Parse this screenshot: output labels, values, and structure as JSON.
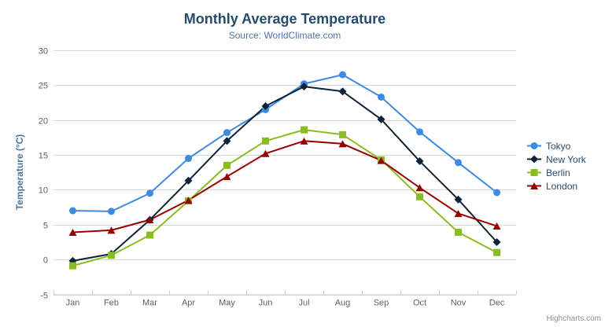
{
  "chart_data": {
    "type": "line",
    "title": "Monthly Average Temperature",
    "subtitle": "Source: WorldClimate.com",
    "categories": [
      "Jan",
      "Feb",
      "Mar",
      "Apr",
      "May",
      "Jun",
      "Jul",
      "Aug",
      "Sep",
      "Oct",
      "Nov",
      "Dec"
    ],
    "xlabel": "",
    "ylabel": "Temperature (°C)",
    "ylim": [
      -5,
      30
    ],
    "ytick_step": 5,
    "grid": "horizontal-only",
    "legend_position": "right-middle",
    "series": [
      {
        "name": "Tokyo",
        "marker": "circle",
        "color": "#3d8be1",
        "values": [
          7.0,
          6.9,
          9.5,
          14.5,
          18.2,
          21.5,
          25.2,
          26.5,
          23.3,
          18.3,
          13.9,
          9.6
        ]
      },
      {
        "name": "New York",
        "marker": "diamond",
        "color": "#0d233a",
        "values": [
          -0.2,
          0.8,
          5.7,
          11.3,
          17.0,
          22.0,
          24.8,
          24.1,
          20.1,
          14.1,
          8.6,
          2.5
        ]
      },
      {
        "name": "Berlin",
        "marker": "square",
        "color": "#8bbc21",
        "values": [
          -0.9,
          0.6,
          3.5,
          8.4,
          13.5,
          17.0,
          18.6,
          17.9,
          14.3,
          9.0,
          3.9,
          1.0
        ]
      },
      {
        "name": "London",
        "marker": "triangle",
        "color": "#970000",
        "values": [
          3.9,
          4.2,
          5.7,
          8.5,
          11.9,
          15.2,
          17.0,
          16.6,
          14.2,
          10.3,
          6.6,
          4.8
        ]
      }
    ]
  },
  "credits": {
    "label": "Highcharts.com"
  },
  "export_menu": {
    "icon": "hamburger-icon"
  },
  "colors": {
    "title": "#274b6d",
    "subtitle": "#4d759e",
    "y_axis_title": "#4d759e",
    "axis_labels": "#606060",
    "legend_text": "#274b6d",
    "grid_line": "#d8d8d8",
    "axis_line": "#c0d0e0",
    "credits": "#909090",
    "export_icon": "#666666",
    "background": "#ffffff"
  }
}
